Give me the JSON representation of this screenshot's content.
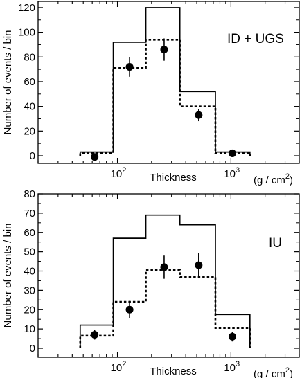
{
  "chart_data": [
    {
      "type": "histogram",
      "x_scale": "log",
      "xlim": [
        20,
        4000
      ],
      "ylim": [
        0,
        125
      ],
      "y_ticks": [
        0,
        20,
        40,
        60,
        80,
        100,
        120
      ],
      "x_tick_labels": [
        {
          "value": 100,
          "base": "10",
          "exp": "2"
        },
        {
          "value": 1000,
          "base": "10",
          "exp": "3"
        }
      ],
      "xlabel": "Thickness",
      "xunit": {
        "pre": "(g / cm",
        "sup": "2",
        "post": ")"
      },
      "ylabel": "Number of events / bin",
      "annotation": "ID + UGS",
      "bin_edges": [
        47,
        92,
        178,
        355,
        730,
        1470
      ],
      "series": [
        {
          "style": "solid",
          "values": [
            3,
            92,
            120,
            52,
            3
          ]
        },
        {
          "style": "dotted",
          "values": [
            2,
            71,
            94,
            40,
            2
          ]
        },
        {
          "style": "points",
          "x": [
            63,
            128,
            258,
            520,
            1030
          ],
          "values": [
            -1,
            72,
            86,
            33,
            2
          ],
          "errors": [
            2,
            8,
            9,
            5,
            3
          ]
        }
      ]
    },
    {
      "type": "histogram",
      "x_scale": "log",
      "xlim": [
        20,
        4000
      ],
      "ylim": [
        0,
        80
      ],
      "y_ticks": [
        0,
        10,
        20,
        30,
        40,
        50,
        60,
        70,
        80
      ],
      "x_tick_labels": [
        {
          "value": 100,
          "base": "10",
          "exp": "2"
        },
        {
          "value": 1000,
          "base": "10",
          "exp": "3"
        }
      ],
      "xlabel": "Thickness",
      "xunit": {
        "pre": "(g / cm",
        "sup": "2",
        "post": ")"
      },
      "ylabel": "Number of events / bin",
      "annotation": "IU",
      "bin_edges": [
        47,
        92,
        178,
        355,
        730,
        1470
      ],
      "series": [
        {
          "style": "solid",
          "values": [
            12,
            57,
            69,
            64,
            17.5
          ]
        },
        {
          "style": "dotted",
          "values": [
            6.5,
            24,
            40.5,
            37,
            10.5
          ]
        },
        {
          "style": "points",
          "x": [
            63,
            128,
            258,
            520,
            1030
          ],
          "values": [
            7,
            20,
            42,
            43,
            6
          ],
          "errors": [
            2.5,
            4.5,
            6,
            6.5,
            2.5
          ]
        }
      ]
    }
  ]
}
